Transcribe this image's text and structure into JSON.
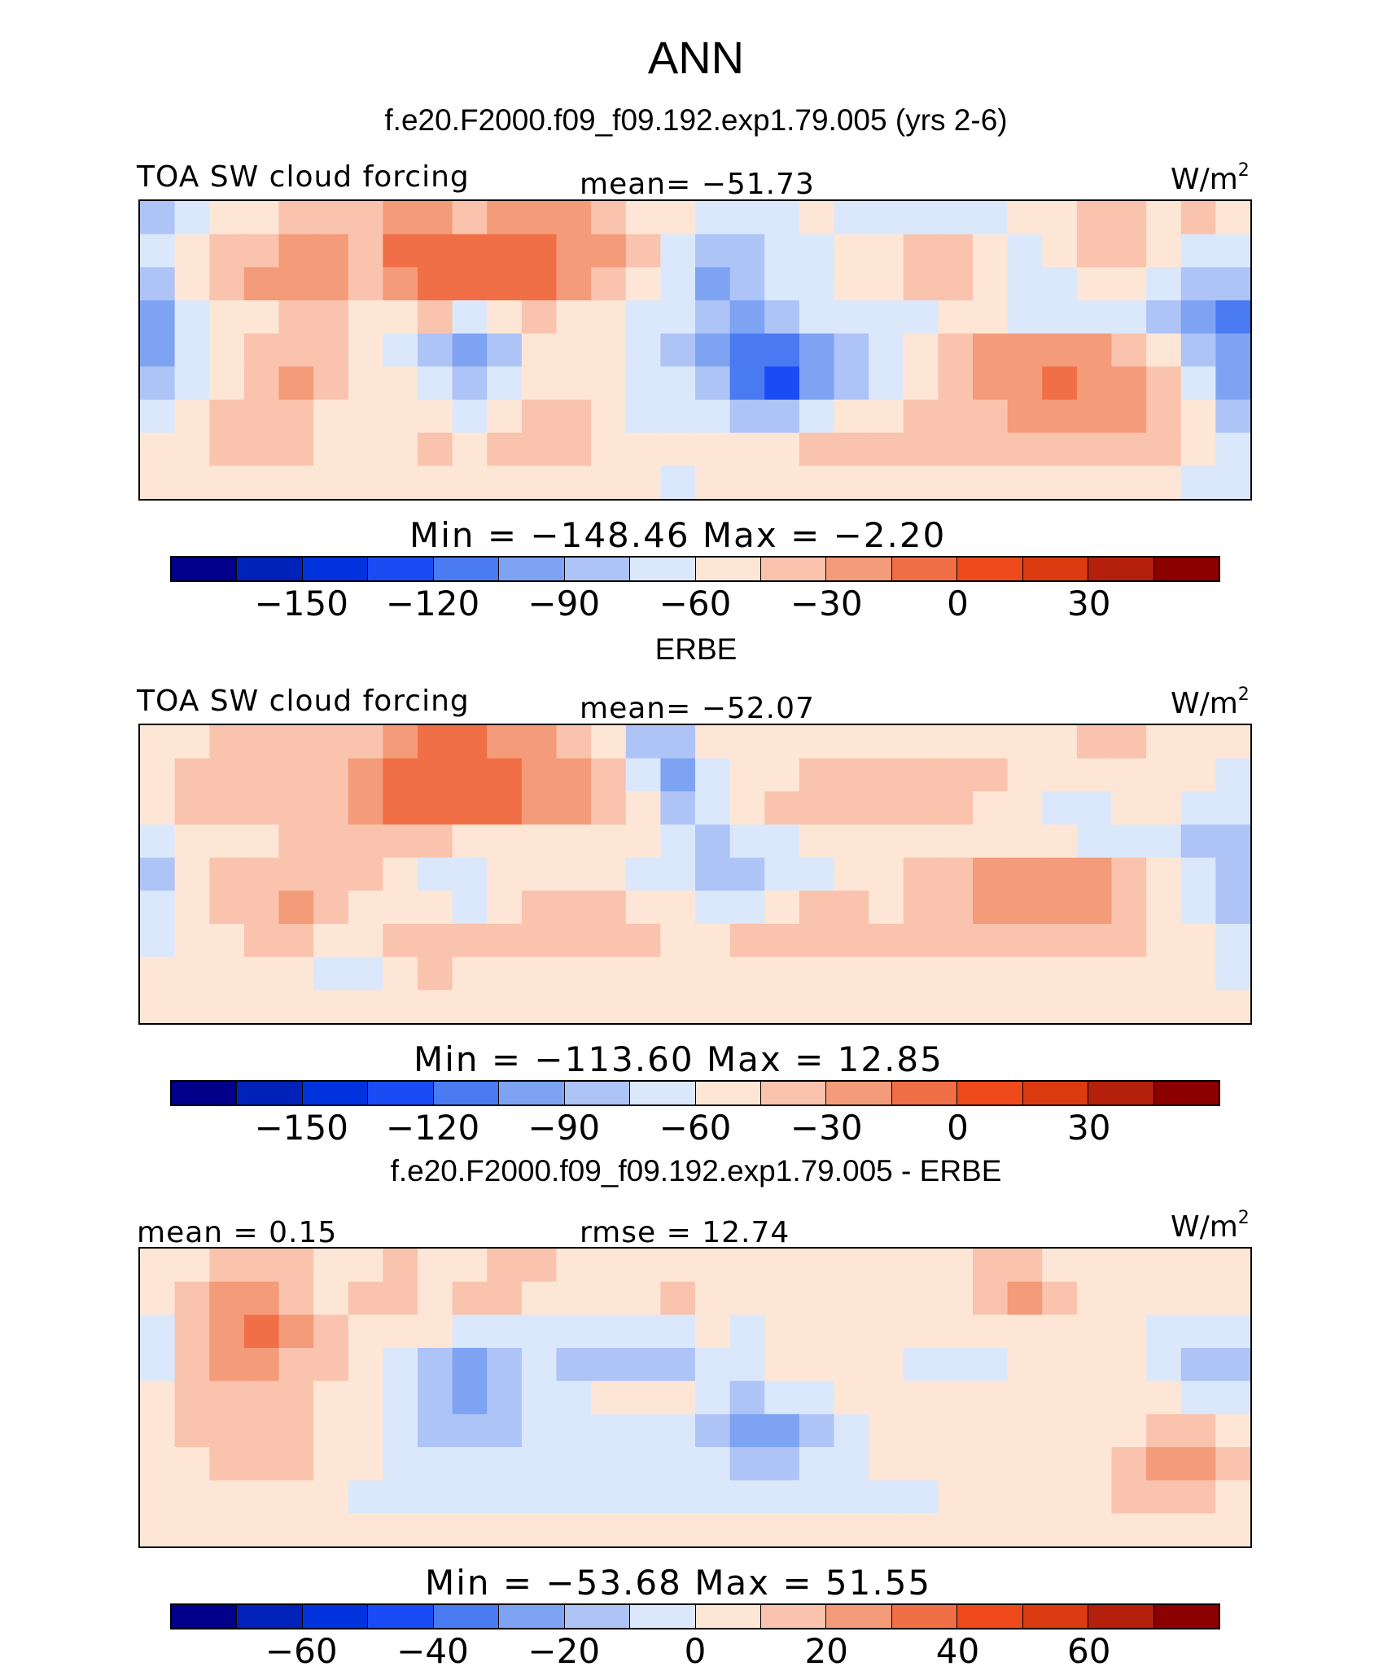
{
  "title": "ANN",
  "colors": [
    "#00008b",
    "#0022b8",
    "#0033dd",
    "#1a4cf5",
    "#4a7af2",
    "#7fa3f3",
    "#aec4f7",
    "#dbe8fb",
    "#fde6d6",
    "#f9c3ad",
    "#f49b7a",
    "#f16f47",
    "#ee4a1c",
    "#dc3a10",
    "#b5200c",
    "#8c0000"
  ],
  "panels": [
    {
      "title": "f.e20.F2000.f09_f09.192.exp1.79.005 (yrs 2-6)",
      "left_label": "TOA SW cloud forcing",
      "center_label": "mean= −51.73",
      "units": "W/m",
      "units_sup": "2",
      "minmax": "Min  =  −148.46  Max  =    −2.20",
      "ticks": [
        "−150",
        "−120",
        "−90",
        "−60",
        "−30",
        "0",
        "30"
      ]
    },
    {
      "title": "ERBE",
      "left_label": "TOA SW cloud forcing",
      "center_label": "mean= −52.07",
      "units": "W/m",
      "units_sup": "2",
      "minmax": "Min  =  −113.60  Max  =    12.85",
      "ticks": [
        "−150",
        "−120",
        "−90",
        "−60",
        "−30",
        "0",
        "30"
      ]
    },
    {
      "title": "f.e20.F2000.f09_f09.192.exp1.79.005 - ERBE",
      "left_label": "mean =    0.15",
      "center_label": "rmse  =    12.74",
      "units": "W/m",
      "units_sup": "2",
      "minmax": "Min  =  −53.68  Max  =    51.55",
      "ticks": [
        "−60",
        "−40",
        "−20",
        "0",
        "20",
        "40",
        "60"
      ]
    }
  ],
  "chart_data": [
    {
      "type": "heatmap",
      "title": "f.e20.F2000.f09_f09.192.exp1.79.005 (yrs 2-6)",
      "variable": "TOA SW cloud forcing",
      "units": "W/m2",
      "mean": -51.73,
      "min": -148.46,
      "max": -2.2,
      "levels": [
        -165,
        -150,
        -135,
        -120,
        -105,
        -90,
        -75,
        -60,
        -45,
        -30,
        -15,
        0,
        15,
        30,
        45
      ],
      "colorbar_ticks": [
        -150,
        -120,
        -90,
        -60,
        -30,
        0,
        30
      ],
      "grid": [
        [
          6,
          7,
          8,
          8,
          9,
          9,
          9,
          10,
          10,
          9,
          10,
          10,
          10,
          9,
          8,
          8,
          7,
          7,
          7,
          8,
          7,
          7,
          7,
          7,
          7,
          8,
          8,
          9,
          9,
          8,
          9,
          8
        ],
        [
          7,
          8,
          9,
          9,
          10,
          10,
          9,
          11,
          11,
          11,
          11,
          11,
          10,
          10,
          9,
          7,
          6,
          6,
          7,
          7,
          8,
          8,
          9,
          9,
          8,
          7,
          8,
          9,
          9,
          8,
          7,
          7
        ],
        [
          6,
          8,
          9,
          10,
          10,
          10,
          9,
          10,
          11,
          11,
          11,
          11,
          10,
          9,
          8,
          7,
          5,
          6,
          7,
          7,
          8,
          8,
          9,
          9,
          8,
          7,
          7,
          8,
          8,
          7,
          6,
          6
        ],
        [
          5,
          7,
          8,
          8,
          9,
          9,
          8,
          8,
          9,
          7,
          8,
          9,
          8,
          8,
          7,
          7,
          6,
          5,
          6,
          7,
          7,
          7,
          7,
          8,
          8,
          7,
          7,
          7,
          7,
          6,
          5,
          4
        ],
        [
          5,
          7,
          8,
          9,
          9,
          9,
          8,
          7,
          6,
          5,
          6,
          8,
          8,
          8,
          7,
          6,
          5,
          4,
          4,
          5,
          6,
          7,
          8,
          9,
          10,
          10,
          10,
          10,
          9,
          8,
          6,
          5
        ],
        [
          6,
          7,
          8,
          9,
          10,
          9,
          8,
          8,
          7,
          6,
          7,
          8,
          8,
          8,
          7,
          7,
          6,
          4,
          3,
          5,
          6,
          7,
          8,
          9,
          10,
          10,
          11,
          10,
          10,
          9,
          7,
          5
        ],
        [
          7,
          8,
          9,
          9,
          9,
          8,
          8,
          8,
          8,
          7,
          8,
          9,
          9,
          8,
          7,
          7,
          7,
          6,
          6,
          7,
          8,
          8,
          9,
          9,
          9,
          10,
          10,
          10,
          10,
          9,
          8,
          6
        ],
        [
          8,
          8,
          9,
          9,
          9,
          8,
          8,
          8,
          9,
          8,
          9,
          9,
          9,
          8,
          8,
          8,
          8,
          8,
          8,
          9,
          9,
          9,
          9,
          9,
          9,
          9,
          9,
          9,
          9,
          9,
          8,
          7
        ],
        [
          8,
          8,
          8,
          8,
          8,
          8,
          8,
          8,
          8,
          8,
          8,
          8,
          8,
          8,
          8,
          7,
          8,
          8,
          8,
          8,
          8,
          8,
          8,
          8,
          8,
          8,
          8,
          8,
          8,
          8,
          7,
          7
        ]
      ]
    },
    {
      "type": "heatmap",
      "title": "ERBE",
      "variable": "TOA SW cloud forcing",
      "units": "W/m2",
      "mean": -52.07,
      "min": -113.6,
      "max": 12.85,
      "levels": [
        -165,
        -150,
        -135,
        -120,
        -105,
        -90,
        -75,
        -60,
        -45,
        -30,
        -15,
        0,
        15,
        30,
        45
      ],
      "colorbar_ticks": [
        -150,
        -120,
        -90,
        -60,
        -30,
        0,
        30
      ],
      "grid": [
        [
          8,
          8,
          9,
          9,
          9,
          9,
          9,
          10,
          11,
          11,
          10,
          10,
          9,
          8,
          6,
          6,
          8,
          8,
          8,
          8,
          8,
          8,
          8,
          8,
          8,
          8,
          8,
          9,
          9,
          8,
          8,
          8
        ],
        [
          8,
          9,
          9,
          9,
          9,
          9,
          10,
          11,
          11,
          11,
          11,
          10,
          10,
          9,
          7,
          5,
          7,
          8,
          8,
          9,
          9,
          9,
          9,
          9,
          9,
          8,
          8,
          8,
          8,
          8,
          8,
          7
        ],
        [
          8,
          9,
          9,
          9,
          9,
          9,
          10,
          11,
          11,
          11,
          11,
          10,
          10,
          9,
          8,
          6,
          7,
          8,
          9,
          9,
          9,
          9,
          9,
          9,
          8,
          8,
          7,
          7,
          8,
          8,
          7,
          7
        ],
        [
          7,
          8,
          8,
          8,
          9,
          9,
          9,
          9,
          9,
          8,
          8,
          8,
          8,
          8,
          8,
          7,
          6,
          7,
          7,
          8,
          8,
          8,
          8,
          8,
          8,
          8,
          8,
          7,
          7,
          7,
          6,
          6
        ],
        [
          6,
          8,
          9,
          9,
          9,
          9,
          9,
          8,
          7,
          7,
          8,
          8,
          8,
          8,
          7,
          7,
          6,
          6,
          7,
          7,
          8,
          8,
          9,
          9,
          10,
          10,
          10,
          10,
          9,
          8,
          7,
          6
        ],
        [
          7,
          8,
          9,
          9,
          10,
          9,
          8,
          8,
          8,
          7,
          8,
          9,
          9,
          9,
          8,
          8,
          7,
          7,
          8,
          9,
          9,
          8,
          9,
          9,
          10,
          10,
          10,
          10,
          9,
          8,
          7,
          6
        ],
        [
          7,
          8,
          8,
          9,
          9,
          8,
          8,
          9,
          9,
          9,
          9,
          9,
          9,
          9,
          9,
          8,
          8,
          9,
          9,
          9,
          9,
          9,
          9,
          9,
          9,
          9,
          9,
          9,
          9,
          8,
          8,
          7
        ],
        [
          8,
          8,
          8,
          8,
          8,
          7,
          7,
          8,
          9,
          8,
          8,
          8,
          8,
          8,
          8,
          8,
          8,
          8,
          8,
          8,
          8,
          8,
          8,
          8,
          8,
          8,
          8,
          8,
          8,
          8,
          8,
          7
        ],
        [
          8,
          8,
          8,
          8,
          8,
          8,
          8,
          8,
          8,
          8,
          8,
          8,
          8,
          8,
          8,
          8,
          8,
          8,
          8,
          8,
          8,
          8,
          8,
          8,
          8,
          8,
          8,
          8,
          8,
          8,
          8,
          8
        ]
      ]
    },
    {
      "type": "heatmap",
      "title": "f.e20.F2000.f09_f09.192.exp1.79.005 - ERBE",
      "units": "W/m2",
      "mean": 0.15,
      "rmse": 12.74,
      "min": -53.68,
      "max": 51.55,
      "levels": [
        -70,
        -60,
        -50,
        -40,
        -30,
        -20,
        -10,
        0,
        10,
        20,
        30,
        40,
        50,
        60,
        70
      ],
      "colorbar_ticks": [
        -60,
        -40,
        -20,
        0,
        20,
        40,
        60
      ],
      "grid": [
        [
          8,
          8,
          9,
          9,
          9,
          8,
          8,
          9,
          8,
          8,
          9,
          9,
          8,
          8,
          8,
          8,
          8,
          8,
          8,
          8,
          8,
          8,
          8,
          8,
          9,
          9,
          8,
          8,
          8,
          8,
          8,
          8
        ],
        [
          8,
          9,
          10,
          10,
          9,
          8,
          9,
          9,
          8,
          9,
          9,
          8,
          8,
          8,
          8,
          9,
          8,
          8,
          8,
          8,
          8,
          8,
          8,
          8,
          9,
          10,
          9,
          8,
          8,
          8,
          8,
          8
        ],
        [
          7,
          9,
          10,
          11,
          10,
          9,
          8,
          8,
          8,
          7,
          7,
          7,
          7,
          7,
          7,
          7,
          8,
          7,
          8,
          8,
          8,
          8,
          8,
          8,
          8,
          8,
          8,
          8,
          8,
          7,
          7,
          7
        ],
        [
          7,
          9,
          10,
          10,
          9,
          9,
          8,
          7,
          6,
          5,
          6,
          7,
          6,
          6,
          6,
          6,
          7,
          7,
          8,
          8,
          8,
          8,
          7,
          7,
          7,
          8,
          8,
          8,
          8,
          7,
          6,
          6
        ],
        [
          8,
          9,
          9,
          9,
          9,
          8,
          8,
          7,
          6,
          5,
          6,
          7,
          7,
          8,
          8,
          8,
          7,
          6,
          7,
          7,
          8,
          8,
          8,
          8,
          8,
          8,
          8,
          8,
          8,
          8,
          7,
          7
        ],
        [
          8,
          9,
          9,
          9,
          9,
          8,
          8,
          7,
          6,
          6,
          6,
          7,
          7,
          7,
          7,
          7,
          6,
          5,
          5,
          6,
          7,
          8,
          8,
          8,
          8,
          8,
          8,
          8,
          8,
          9,
          9,
          8
        ],
        [
          8,
          8,
          9,
          9,
          9,
          8,
          8,
          7,
          7,
          7,
          7,
          7,
          7,
          7,
          7,
          7,
          7,
          6,
          6,
          7,
          7,
          8,
          8,
          8,
          8,
          8,
          8,
          8,
          9,
          10,
          10,
          9
        ],
        [
          8,
          8,
          8,
          8,
          8,
          8,
          7,
          7,
          7,
          7,
          7,
          7,
          7,
          7,
          7,
          7,
          7,
          7,
          7,
          7,
          7,
          7,
          7,
          8,
          8,
          8,
          8,
          8,
          9,
          9,
          9,
          8
        ],
        [
          8,
          8,
          8,
          8,
          8,
          8,
          8,
          8,
          8,
          8,
          8,
          8,
          8,
          8,
          8,
          8,
          8,
          8,
          8,
          8,
          8,
          8,
          8,
          8,
          8,
          8,
          8,
          8,
          8,
          8,
          8,
          8
        ]
      ]
    }
  ]
}
